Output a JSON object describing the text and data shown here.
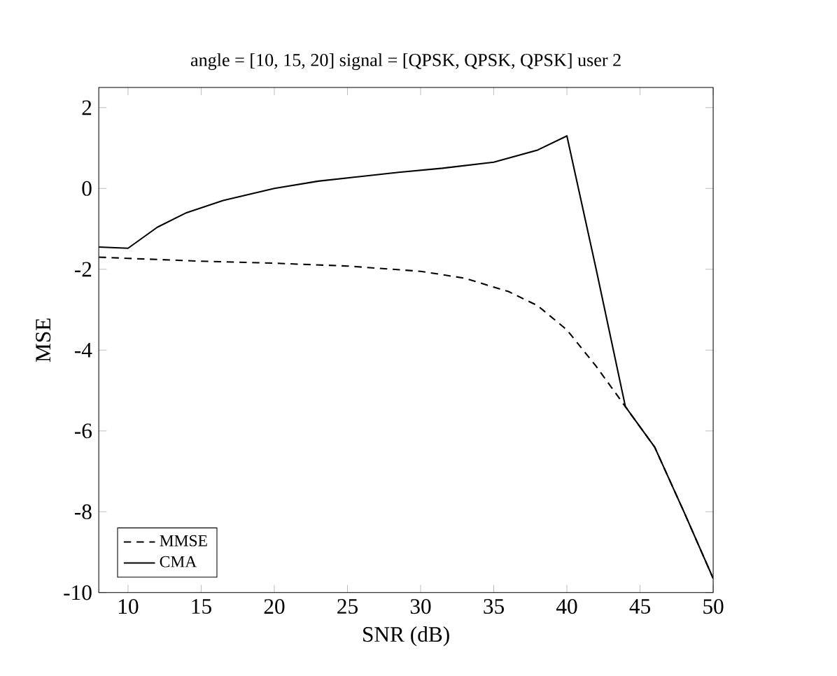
{
  "chart_data": {
    "type": "line",
    "title": "angle = [10, 15, 20]     signal = [QPSK, QPSK, QPSK] user 2",
    "xlabel": "SNR (dB)",
    "ylabel": "MSE",
    "xlim": [
      8,
      50
    ],
    "ylim": [
      -10,
      2.5
    ],
    "xticks": [
      10,
      15,
      20,
      25,
      30,
      35,
      40,
      45,
      50
    ],
    "yticks": [
      -10,
      -8,
      -6,
      -4,
      -2,
      0,
      2
    ],
    "grid": false,
    "legend": "bottom left",
    "marker": "none",
    "series": [
      {
        "name": "MMSE",
        "color": "#000000",
        "line_style": "dashed",
        "x": [
          8,
          10,
          15,
          20,
          25,
          30,
          33,
          36,
          38,
          40,
          42,
          44,
          46,
          48,
          50
        ],
        "values": [
          -1.7,
          -1.73,
          -1.8,
          -1.85,
          -1.92,
          -2.05,
          -2.22,
          -2.55,
          -2.9,
          -3.5,
          -4.4,
          -5.4,
          -6.4,
          -8.0,
          -9.65
        ]
      },
      {
        "name": "CMA",
        "color": "#000000",
        "line_style": "solid",
        "x": [
          8,
          10,
          12,
          14,
          16.5,
          20,
          23,
          26,
          28.5,
          31.5,
          35,
          38,
          40,
          42,
          44,
          46,
          48,
          50
        ],
        "values": [
          -1.45,
          -1.48,
          -0.96,
          -0.6,
          -0.3,
          0.0,
          0.18,
          0.3,
          0.4,
          0.5,
          0.65,
          0.95,
          1.3,
          -2.0,
          -5.4,
          -6.4,
          -8.0,
          -9.65
        ]
      }
    ]
  }
}
